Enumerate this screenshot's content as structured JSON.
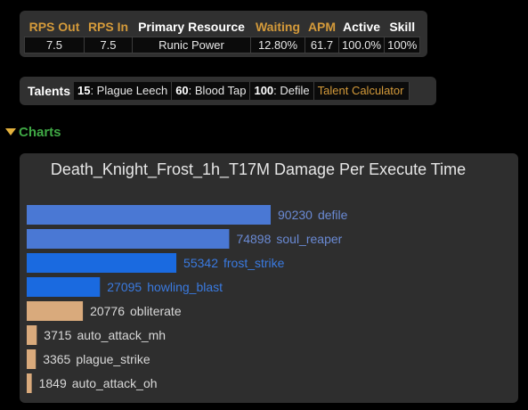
{
  "stats": {
    "headers": [
      {
        "label": "RPS Out",
        "color": "#d49a3a"
      },
      {
        "label": "RPS In",
        "color": "#d49a3a"
      },
      {
        "label": "Primary Resource",
        "color": "#ffffff"
      },
      {
        "label": "Waiting",
        "color": "#d49a3a"
      },
      {
        "label": "APM",
        "color": "#d49a3a"
      },
      {
        "label": "Active",
        "color": "#ffffff"
      },
      {
        "label": "Skill",
        "color": "#ffffff"
      }
    ],
    "values": [
      "7.5",
      "7.5",
      "Runic Power",
      "12.80%",
      "61.7",
      "100.0%",
      "100%"
    ]
  },
  "talents": {
    "label": "Talents",
    "items": [
      {
        "level": "15",
        "name": ": Plague Leech"
      },
      {
        "level": "60",
        "name": ": Blood Tap"
      },
      {
        "level": "100",
        "name": ": Defile"
      }
    ],
    "calculator_label": "Talent Calculator"
  },
  "charts_section": {
    "label": "Charts"
  },
  "chart_data": {
    "type": "bar",
    "orientation": "horizontal",
    "title": "Death_Knight_Frost_1h_T17M Damage Per Execute Time",
    "categories": [
      "defile",
      "soul_reaper",
      "frost_strike",
      "howling_blast",
      "obliterate",
      "auto_attack_mh",
      "plague_strike",
      "auto_attack_oh"
    ],
    "values": [
      90230,
      74898,
      55342,
      27095,
      20776,
      3715,
      3365,
      1849
    ],
    "colors": [
      "#4a78d4",
      "#4a78d4",
      "#1a6ae0",
      "#1a6ae0",
      "#d9aa7c",
      "#d9aa7c",
      "#d9aa7c",
      "#d9aa7c"
    ],
    "label_colors": [
      "#6a8ad4",
      "#6a8ad4",
      "#3a7ae0",
      "#3a7ae0",
      "#d8d8d8",
      "#d8d8d8",
      "#d8d8d8",
      "#d8d8d8"
    ],
    "xlim": [
      0,
      90230
    ]
  }
}
